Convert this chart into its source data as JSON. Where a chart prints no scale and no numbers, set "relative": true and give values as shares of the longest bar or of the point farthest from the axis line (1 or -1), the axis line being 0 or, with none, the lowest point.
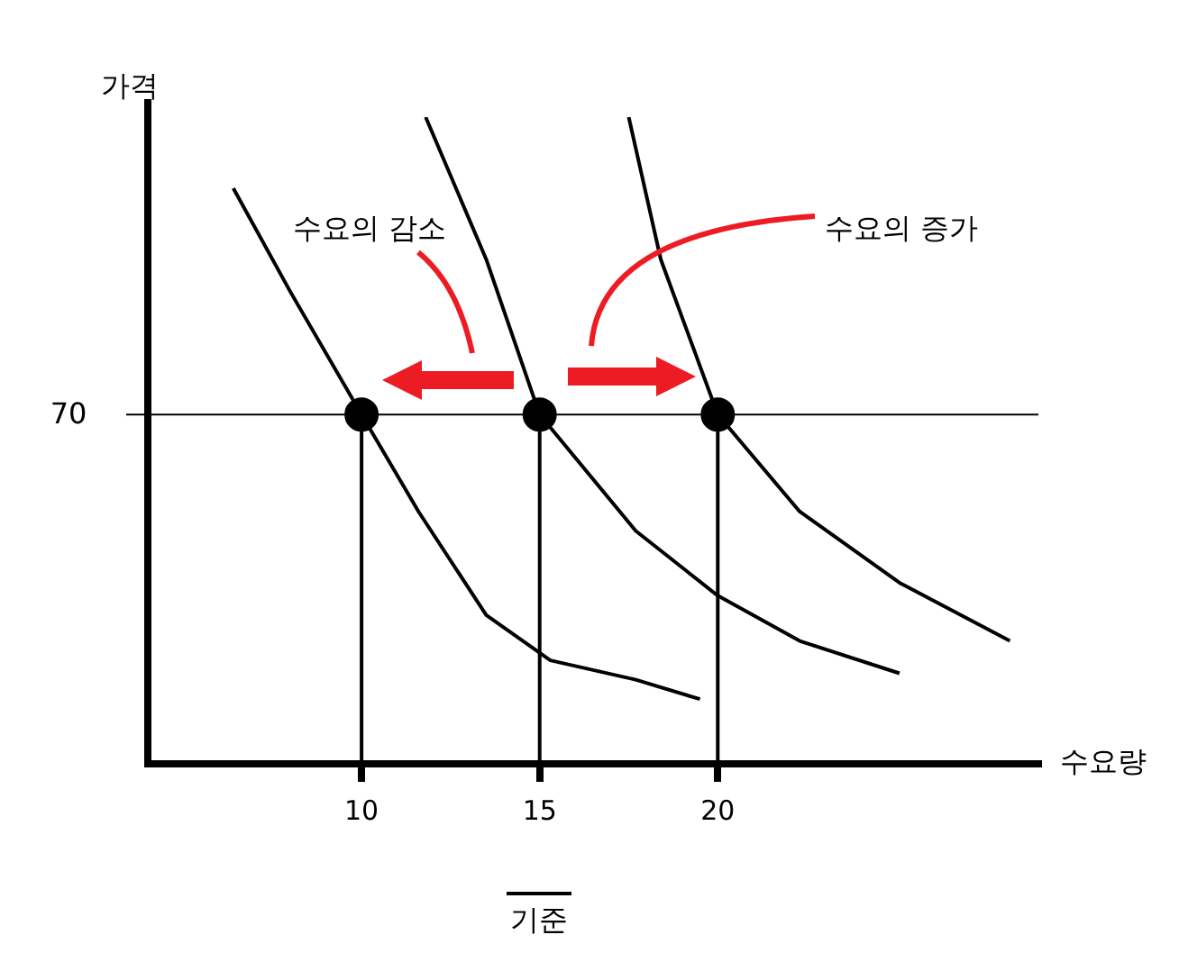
{
  "chart_data": {
    "type": "line",
    "xlabel": "수요량",
    "ylabel": "가격",
    "relative": true,
    "xlim": [
      4,
      29
    ],
    "xticks": [
      10,
      15,
      20
    ],
    "grid": false,
    "legend": false,
    "marker": "none",
    "line_style": "solid",
    "series": [
      {
        "color": "#000000",
        "x": [
          6.4,
          8,
          10,
          11.6,
          13.5,
          15.3,
          17.7,
          19.5
        ],
        "values": [
          0.89,
          0.73,
          0.54,
          0.39,
          0.23,
          0.16,
          0.13,
          0.1
        ]
      },
      {
        "color": "#000000",
        "x": [
          11.8,
          13.5,
          15,
          17.7,
          20,
          22.3,
          25.1
        ],
        "values": [
          1,
          0.78,
          0.54,
          0.36,
          0.26,
          0.19,
          0.14
        ]
      },
      {
        "color": "#000000",
        "x": [
          17.5,
          18.4,
          20,
          22.3,
          25.1,
          28.2
        ],
        "values": [
          1,
          0.78,
          0.54,
          0.39,
          0.28,
          0.19
        ]
      },
      {
        "color": "#000000",
        "x": [
          10,
          10
        ],
        "values": [
          0,
          0.54
        ]
      },
      {
        "color": "#000000",
        "x": [
          15,
          15
        ],
        "values": [
          0,
          0.54
        ]
      },
      {
        "color": "#000000",
        "x": [
          20,
          20
        ],
        "values": [
          0,
          0.54
        ]
      },
      {
        "type": "scatter",
        "marker": "circle",
        "color": "#000000",
        "x": [
          10,
          15,
          20
        ],
        "values": [
          0.54,
          0.54,
          0.54
        ]
      }
    ],
    "ref_lines": [
      {
        "axis": "y",
        "value": 0.54,
        "color": "#000000"
      }
    ],
    "annotations": [
      "70",
      "수요의 감소",
      "수요의 증가",
      "기준"
    ]
  }
}
